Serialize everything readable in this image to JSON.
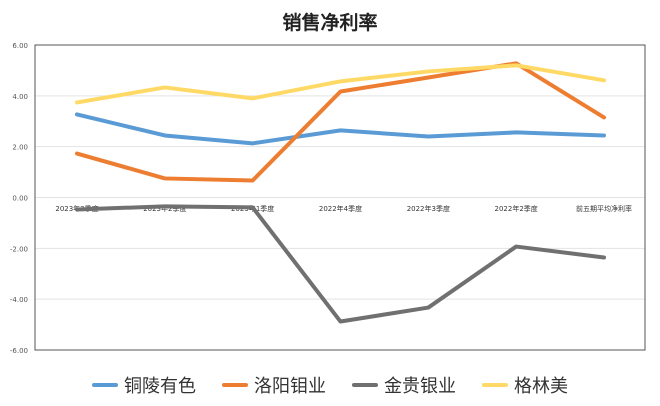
{
  "chart_data": {
    "type": "line",
    "title": "销售净利率",
    "categories": [
      "2023年3季度",
      "2023年2季度",
      "2023年1季度",
      "2022年4季度",
      "2022年3季度",
      "2022年2季度",
      "前五期平均净利率"
    ],
    "ylim": [
      -6,
      6
    ],
    "yticks": [
      "6.00",
      "4.00",
      "2.00",
      "0.00",
      "-2.00",
      "-4.00",
      "-6.00"
    ],
    "grid": true,
    "legend": "bottom",
    "series": [
      {
        "name": "铜陵有色",
        "color": "#5B9BD5",
        "values": [
          3.27,
          2.44,
          2.13,
          2.64,
          2.4,
          2.56,
          2.44
        ]
      },
      {
        "name": "洛阳钼业",
        "color": "#ED7D31",
        "values": [
          1.73,
          0.75,
          0.67,
          4.17,
          4.72,
          5.28,
          3.15
        ]
      },
      {
        "name": "金贵银业",
        "color": "#707070",
        "values": [
          -0.47,
          -0.35,
          -0.39,
          -4.88,
          -4.33,
          -1.93,
          -2.36
        ]
      },
      {
        "name": "格林美",
        "color": "#FFD966",
        "values": [
          3.74,
          4.33,
          3.9,
          4.57,
          4.96,
          5.2,
          4.61
        ]
      }
    ]
  }
}
